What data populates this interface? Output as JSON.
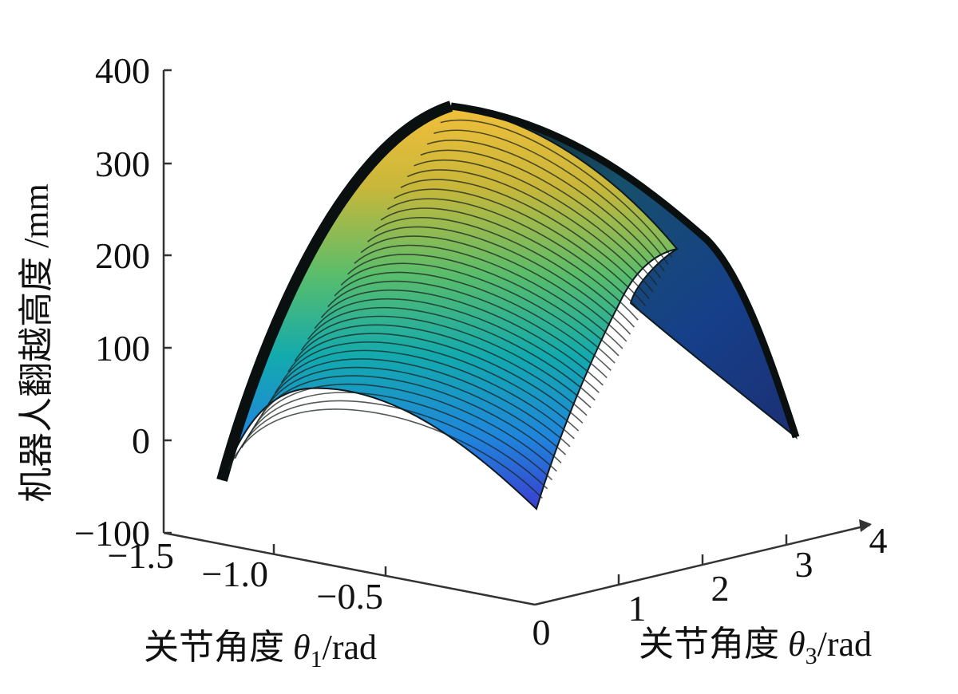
{
  "chart_data": {
    "type": "surface3d",
    "title": "",
    "z_label": "机器人翻越高度 /mm",
    "x_label": {
      "prefix": "关节角度 ",
      "symbol": "θ",
      "sub": "1",
      "suffix": "/rad"
    },
    "y_label": {
      "prefix": "关节角度 ",
      "symbol": "θ",
      "sub": "3",
      "suffix": "/rad"
    },
    "x_ticks": [
      "−1.5",
      "−1.0",
      "−0.5",
      "0"
    ],
    "y_ticks": [
      "1",
      "2",
      "3",
      "4"
    ],
    "z_ticks": [
      "400",
      "300",
      "200",
      "100",
      "0",
      "−100"
    ],
    "xlim": [
      -1.5,
      0
    ],
    "ylim": [
      0,
      4
    ],
    "zlim": [
      -100,
      400
    ],
    "colormap": "parula",
    "surface": {
      "theta1": [
        -1.4,
        0
      ],
      "theta3": [
        0,
        3.6
      ],
      "z_edge_theta1_min": [
        -47,
        48,
        25,
        -88
      ],
      "z_edge_theta1_max": [
        -88,
        161,
        200,
        0
      ],
      "z_edge_theta3_min": [
        -47,
        298,
        358,
        312,
        208,
        0
      ],
      "z_peak": 360
    }
  }
}
